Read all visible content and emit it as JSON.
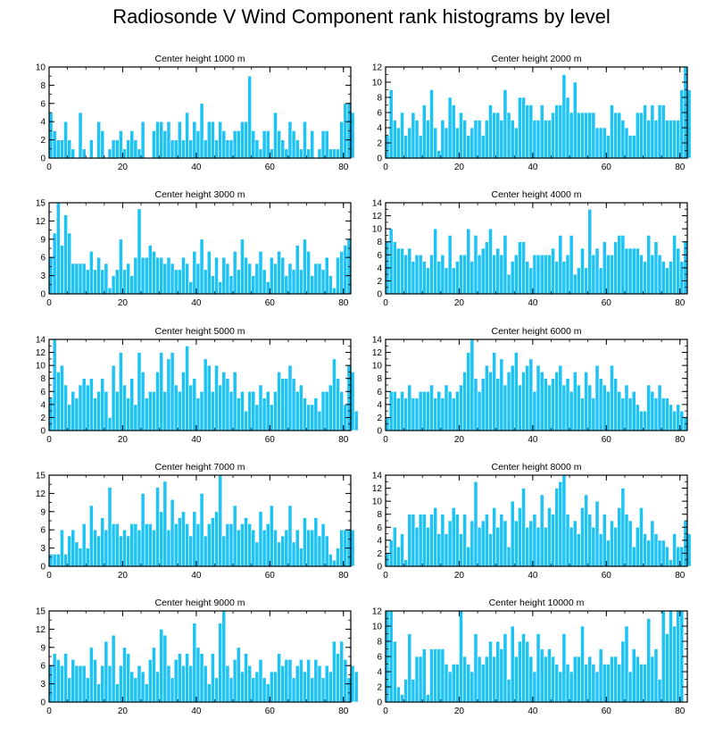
{
  "title": "Radiosonde V Wind Component rank histograms by level",
  "chart_data": [
    {
      "type": "bar",
      "title": "Center height 1000 m",
      "xlim": [
        0,
        82
      ],
      "xticks": [
        0,
        20,
        40,
        60,
        80
      ],
      "ylim": [
        0,
        10
      ],
      "yticks": [
        0,
        2,
        4,
        6,
        8,
        10
      ],
      "values": [
        5,
        3,
        2,
        2,
        4,
        2,
        1,
        0,
        5,
        1,
        0,
        2,
        0,
        4,
        3,
        0,
        1,
        2,
        2,
        3,
        1,
        2,
        3,
        2,
        1,
        4,
        0,
        0,
        3,
        4,
        4,
        3,
        4,
        2,
        2,
        4,
        2,
        5,
        2,
        4,
        3,
        6,
        2,
        4,
        4,
        2,
        4,
        3,
        2,
        2,
        3,
        3,
        4,
        4,
        9,
        3,
        2,
        1,
        3,
        3,
        1,
        5,
        3,
        2,
        1,
        4,
        3,
        2,
        1,
        4,
        1,
        3,
        0,
        1,
        3,
        3,
        1,
        1,
        1,
        4,
        6,
        6,
        5
      ]
    },
    {
      "type": "bar",
      "title": "Center height 2000 m",
      "xlim": [
        0,
        82
      ],
      "xticks": [
        0,
        20,
        40,
        60,
        80
      ],
      "ylim": [
        0,
        12
      ],
      "yticks": [
        0,
        2,
        4,
        6,
        8,
        10,
        12
      ],
      "values": [
        3,
        9,
        5,
        4,
        6,
        3,
        4,
        6,
        5,
        3,
        7,
        5,
        9,
        4,
        1,
        5,
        4,
        8,
        7,
        4,
        6,
        5,
        3,
        4,
        5,
        5,
        3,
        5,
        7,
        6,
        6,
        5,
        9,
        6,
        5,
        4,
        8,
        8,
        7,
        7,
        5,
        5,
        7,
        5,
        5,
        6,
        7,
        7,
        11,
        8,
        6,
        10,
        6,
        6,
        6,
        6,
        6,
        4,
        4,
        4,
        3,
        7,
        6,
        6,
        5,
        4,
        3,
        3,
        6,
        6,
        7,
        5,
        7,
        5,
        7,
        7,
        5,
        5,
        5,
        5,
        9,
        12,
        9
      ]
    },
    {
      "type": "bar",
      "title": "Center height 3000 m",
      "xlim": [
        0,
        82
      ],
      "xticks": [
        0,
        20,
        40,
        60,
        80
      ],
      "ylim": [
        0,
        15
      ],
      "yticks": [
        0,
        3,
        6,
        9,
        12,
        15
      ],
      "values": [
        6,
        10,
        15,
        8,
        13,
        10,
        5,
        5,
        5,
        5,
        4,
        7,
        4,
        6,
        4,
        5,
        1,
        3,
        4,
        9,
        4,
        5,
        3,
        6,
        14,
        6,
        6,
        8,
        7,
        6,
        6,
        5,
        6,
        5,
        4,
        4,
        6,
        5,
        2,
        7,
        5,
        9,
        4,
        7,
        3,
        6,
        2,
        6,
        5,
        3,
        7,
        4,
        9,
        6,
        5,
        3,
        5,
        7,
        4,
        2,
        6,
        5,
        7,
        6,
        3,
        5,
        4,
        8,
        4,
        9,
        7,
        3,
        5,
        5,
        4,
        6,
        3,
        1,
        6,
        7,
        8,
        9
      ]
    },
    {
      "type": "bar",
      "title": "Center height 4000 m",
      "xlim": [
        0,
        82
      ],
      "xticks": [
        0,
        20,
        40,
        60,
        80
      ],
      "ylim": [
        0,
        14
      ],
      "yticks": [
        0,
        2,
        4,
        6,
        8,
        10,
        12,
        14
      ],
      "values": [
        8,
        10,
        8,
        7,
        7,
        6,
        7,
        5,
        6,
        6,
        5,
        4,
        6,
        10,
        5,
        6,
        4,
        9,
        4,
        5,
        6,
        6,
        10,
        5,
        9,
        6,
        7,
        8,
        10,
        6,
        7,
        6,
        9,
        3,
        5,
        6,
        8,
        8,
        5,
        4,
        6,
        6,
        6,
        6,
        6,
        7,
        5,
        9,
        5,
        6,
        9,
        3,
        4,
        7,
        4,
        13,
        6,
        7,
        4,
        8,
        6,
        6,
        8,
        9,
        9,
        7,
        7,
        7,
        7,
        6,
        5,
        9,
        6,
        8,
        6,
        5,
        4,
        5,
        9,
        7,
        5,
        8
      ]
    },
    {
      "type": "bar",
      "title": "Center height 5000 m",
      "xlim": [
        0,
        82
      ],
      "xticks": [
        0,
        20,
        40,
        60,
        80
      ],
      "ylim": [
        0,
        14
      ],
      "yticks": [
        0,
        2,
        4,
        6,
        8,
        10,
        12,
        14
      ],
      "values": [
        5,
        14,
        9,
        10,
        7,
        4,
        6,
        5,
        7,
        8,
        7,
        8,
        5,
        6,
        8,
        6,
        2,
        10,
        6,
        12,
        7,
        5,
        8,
        4,
        12,
        9,
        5,
        6,
        6,
        9,
        12,
        6,
        11,
        12,
        7,
        6,
        9,
        13,
        7,
        8,
        5,
        6,
        11,
        10,
        6,
        10,
        7,
        9,
        8,
        6,
        9,
        5,
        6,
        3,
        6,
        6,
        4,
        7,
        5,
        6,
        4,
        6,
        9,
        8,
        8,
        10,
        8,
        6,
        7,
        5,
        4,
        4,
        5,
        3,
        6,
        6,
        7,
        11,
        8,
        6,
        4,
        10,
        9,
        3
      ]
    },
    {
      "type": "bar",
      "title": "Center height 6000 m",
      "xlim": [
        0,
        82
      ],
      "xticks": [
        0,
        20,
        40,
        60,
        80
      ],
      "ylim": [
        0,
        14
      ],
      "yticks": [
        0,
        2,
        4,
        6,
        8,
        10,
        12,
        14
      ],
      "values": [
        2,
        6,
        6,
        5,
        6,
        5,
        7,
        5,
        5,
        6,
        6,
        6,
        7,
        5,
        6,
        5,
        7,
        6,
        5,
        6,
        7,
        9,
        12,
        14,
        8,
        6,
        8,
        10,
        9,
        12,
        8,
        11,
        7,
        9,
        10,
        12,
        7,
        9,
        10,
        11,
        6,
        10,
        9,
        8,
        7,
        8,
        9,
        10,
        7,
        8,
        6,
        9,
        7,
        5,
        9,
        7,
        5,
        10,
        8,
        7,
        6,
        10,
        8,
        6,
        5,
        7,
        5,
        6,
        4,
        3,
        3,
        7,
        6,
        5,
        7,
        5,
        5,
        4,
        3,
        4,
        3,
        2
      ]
    },
    {
      "type": "bar",
      "title": "Center height 7000 m",
      "xlim": [
        0,
        82
      ],
      "xticks": [
        0,
        20,
        40,
        60,
        80
      ],
      "ylim": [
        0,
        15
      ],
      "yticks": [
        0,
        3,
        6,
        9,
        12,
        15
      ],
      "values": [
        2,
        2,
        2,
        6,
        2,
        5,
        6,
        4,
        3,
        7,
        3,
        10,
        6,
        5,
        8,
        6,
        13,
        7,
        7,
        5,
        6,
        5,
        7,
        7,
        6,
        12,
        7,
        7,
        6,
        13,
        9,
        14,
        6,
        11,
        7,
        8,
        9,
        7,
        5,
        9,
        7,
        12,
        5,
        7,
        8,
        9,
        15,
        5,
        7,
        7,
        10,
        6,
        7,
        8,
        7,
        6,
        4,
        9,
        6,
        7,
        10,
        6,
        4,
        5,
        6,
        10,
        4,
        6,
        3,
        8,
        6,
        6,
        8,
        5,
        7,
        5,
        2,
        1,
        3,
        6,
        6,
        6,
        6
      ]
    },
    {
      "type": "bar",
      "title": "Center height 8000 m",
      "xlim": [
        0,
        82
      ],
      "xticks": [
        0,
        20,
        40,
        60,
        80
      ],
      "ylim": [
        0,
        14
      ],
      "yticks": [
        0,
        2,
        4,
        6,
        8,
        10,
        12,
        14
      ],
      "values": [
        2,
        4,
        6,
        3,
        5,
        1,
        8,
        8,
        6,
        8,
        8,
        6,
        8,
        9,
        5,
        8,
        5,
        7,
        9,
        8,
        5,
        8,
        3,
        7,
        13,
        6,
        7,
        8,
        5,
        9,
        6,
        8,
        7,
        3,
        10,
        7,
        9,
        12,
        6,
        7,
        8,
        6,
        11,
        6,
        9,
        8,
        12,
        13,
        14,
        8,
        6,
        7,
        5,
        9,
        11,
        8,
        6,
        10,
        5,
        8,
        4,
        7,
        6,
        9,
        12,
        8,
        7,
        3,
        6,
        9,
        5,
        4,
        7,
        5,
        4,
        4,
        3,
        1,
        5,
        3,
        3,
        7,
        5
      ]
    },
    {
      "type": "bar",
      "title": "Center height 9000 m",
      "xlim": [
        0,
        82
      ],
      "xticks": [
        0,
        20,
        40,
        60,
        80
      ],
      "ylim": [
        0,
        15
      ],
      "yticks": [
        0,
        3,
        6,
        9,
        12,
        15
      ],
      "values": [
        6,
        8,
        7,
        6,
        8,
        4,
        7,
        6,
        6,
        6,
        4,
        9,
        7,
        3,
        6,
        10,
        6,
        11,
        3,
        6,
        9,
        8,
        5,
        4,
        6,
        5,
        3,
        7,
        9,
        5,
        12,
        11,
        6,
        4,
        7,
        8,
        6,
        8,
        6,
        13,
        9,
        8,
        6,
        3,
        8,
        4,
        13,
        15,
        6,
        4,
        7,
        9,
        5,
        8,
        6,
        4,
        5,
        7,
        4,
        3,
        5,
        5,
        8,
        6,
        7,
        7,
        4,
        6,
        7,
        5,
        7,
        4,
        7,
        6,
        4,
        6,
        5,
        10,
        8,
        10,
        7,
        4,
        6,
        5
      ]
    },
    {
      "type": "bar",
      "title": "Center height 10000 m",
      "xlim": [
        0,
        82
      ],
      "xticks": [
        0,
        20,
        40,
        60,
        80
      ],
      "ylim": [
        0,
        12
      ],
      "yticks": [
        0,
        2,
        4,
        6,
        8,
        10,
        12
      ],
      "values": [
        12,
        12,
        8,
        2,
        1,
        3,
        9,
        3,
        6,
        6,
        7,
        1,
        7,
        7,
        7,
        7,
        5,
        4,
        5,
        5,
        12,
        6,
        5,
        4,
        9,
        6,
        5,
        6,
        8,
        6,
        8,
        7,
        9,
        3,
        10,
        6,
        8,
        9,
        8,
        6,
        4,
        9,
        7,
        6,
        7,
        6,
        5,
        4,
        9,
        5,
        4,
        6,
        6,
        10,
        5,
        6,
        5,
        4,
        7,
        5,
        5,
        6,
        6,
        5,
        8,
        10,
        4,
        7,
        6,
        5,
        5,
        11,
        6,
        7,
        3,
        12,
        9,
        12,
        10,
        12,
        12
      ]
    }
  ]
}
